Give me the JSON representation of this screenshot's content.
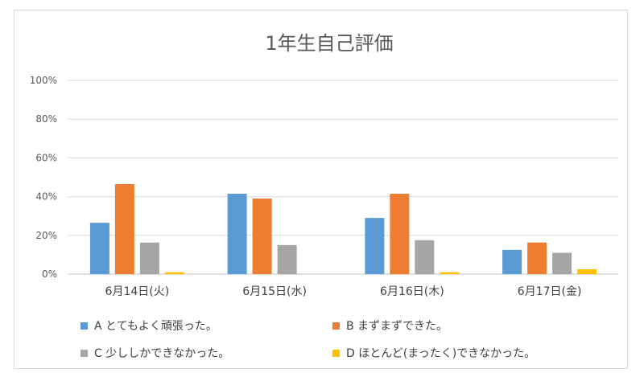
{
  "chart_data": {
    "type": "bar",
    "title": "1年生自己評価",
    "categories": [
      "6月14日(火)",
      "6月15日(水)",
      "6月16日(木)",
      "6月17日(金)"
    ],
    "yticks": [
      "0%",
      "20%",
      "40%",
      "60%",
      "80%",
      "100%"
    ],
    "ylim": [
      0,
      100
    ],
    "grid": true,
    "legend_position": "bottom",
    "series": [
      {
        "name": "A とてもよく頑張った。",
        "values": [
          26.5,
          41.5,
          29,
          12.5
        ],
        "color": "#5b9bd5"
      },
      {
        "name": "B まずまずできた。",
        "values": [
          46.5,
          39,
          41.5,
          16.3
        ],
        "color": "#ed7d31"
      },
      {
        "name": "C 少ししかできなかった。",
        "values": [
          16.3,
          15,
          17.5,
          11
        ],
        "color": "#a5a5a5"
      },
      {
        "name": "D ほとんど(まったく)できなかった。",
        "values": [
          1,
          0,
          1,
          2.5
        ],
        "color": "#ffc000"
      }
    ]
  }
}
